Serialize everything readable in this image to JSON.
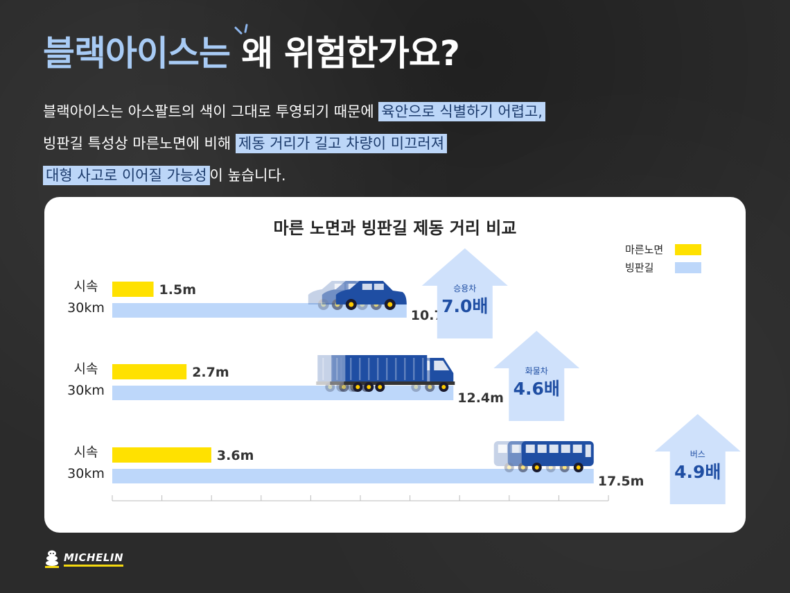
{
  "title": {
    "accent": "블랙아이스는",
    "rest": " 왜 위험한가요?"
  },
  "intro": {
    "line1": {
      "text": "블랙아이스는 아스팔트의 색이 그대로 투영되기 때문에 ",
      "highlight": "육안으로 식별하기 어렵고,"
    },
    "line2": {
      "text": "빙판길 특성상 마른노면에 비해 ",
      "highlight": "제동 거리가 길고 차량이 미끄러져"
    },
    "line3": {
      "highlight": "대형 사고로 이어질 가능성",
      "text": "이 높습니다."
    }
  },
  "chart_data": {
    "type": "bar",
    "title": "마른 노면과 빙판길 제동 거리 비교",
    "legend_position": "top-right",
    "x_axis_ticks": 10,
    "categories": [
      "시속\n30km",
      "시속\n30km",
      "시속\n30km"
    ],
    "vehicles": [
      "승용차",
      "화물차",
      "버스"
    ],
    "ratios": [
      "7.0배",
      "4.6배",
      "4.9배"
    ],
    "series": [
      {
        "name": "마른노면",
        "color": "#ffe100",
        "values": [
          1.5,
          2.7,
          3.6
        ],
        "labels": [
          "1.5m",
          "2.7m",
          "3.6m"
        ]
      },
      {
        "name": "빙판길",
        "color": "#bdd7fa",
        "values": [
          10.7,
          12.4,
          17.5
        ],
        "labels": [
          "10.7m",
          "12.4m",
          "17.5m"
        ]
      }
    ]
  },
  "logo": {
    "text": "MICHELIN"
  },
  "colors": {
    "accent": "#a8cbf5",
    "highlight": "#bcd6f8",
    "navy": "#1f4ea3",
    "dry": "#ffe100",
    "ice": "#bdd7fa"
  }
}
